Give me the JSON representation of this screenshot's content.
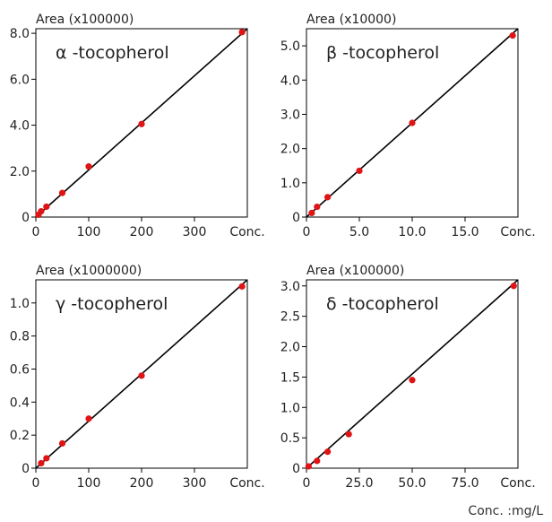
{
  "chart_data": [
    {
      "type": "scatter",
      "title": "α -tocopherol",
      "ylabel": "Area (x100000)",
      "xlabel": "Conc.",
      "xlim": [
        0,
        400
      ],
      "ylim": [
        0,
        8.2
      ],
      "xticks": [
        "0",
        "100",
        "200",
        "300"
      ],
      "yticks": [
        "0",
        "2.0",
        "4.0",
        "6.0",
        "8.0"
      ],
      "fit_line": {
        "x": [
          0,
          400
        ],
        "y": [
          0,
          8.2
        ]
      },
      "series": [
        {
          "x": [
            5,
            10,
            20,
            50,
            100,
            200,
            390
          ],
          "y": [
            0.1,
            0.25,
            0.45,
            1.05,
            2.2,
            4.05,
            8.05
          ]
        }
      ]
    },
    {
      "type": "scatter",
      "title": "β -tocopherol",
      "ylabel": "Area (x10000)",
      "xlabel": "Conc.",
      "xlim": [
        0,
        20
      ],
      "ylim": [
        0,
        5.5
      ],
      "xticks": [
        "0",
        "5.0",
        "10.0",
        "15.0"
      ],
      "yticks": [
        "0",
        "1.0",
        "2.0",
        "3.0",
        "4.0",
        "5.0"
      ],
      "fit_line": {
        "x": [
          0,
          20
        ],
        "y": [
          0,
          5.5
        ]
      },
      "series": [
        {
          "x": [
            0.5,
            1,
            2,
            5,
            10,
            19.5
          ],
          "y": [
            0.12,
            0.3,
            0.58,
            1.35,
            2.75,
            5.3
          ]
        }
      ]
    },
    {
      "type": "scatter",
      "title": "γ -tocopherol",
      "ylabel": "Area (x1000000)",
      "xlabel": "Conc.",
      "xlim": [
        0,
        400
      ],
      "ylim": [
        0,
        1.14
      ],
      "xticks": [
        "0",
        "100",
        "200",
        "300"
      ],
      "yticks": [
        "0",
        "0.2",
        "0.4",
        "0.6",
        "0.8",
        "1.0"
      ],
      "fit_line": {
        "x": [
          0,
          400
        ],
        "y": [
          0,
          1.14
        ]
      },
      "series": [
        {
          "x": [
            10,
            20,
            50,
            100,
            200,
            390
          ],
          "y": [
            0.03,
            0.06,
            0.15,
            0.3,
            0.56,
            1.1
          ]
        }
      ]
    },
    {
      "type": "scatter",
      "title": "δ -tocopherol",
      "ylabel": "Area (x100000)",
      "xlabel": "Conc.",
      "xlim": [
        0,
        100
      ],
      "ylim": [
        0,
        3.1
      ],
      "xticks": [
        "0",
        "25.0",
        "50.0",
        "75.0"
      ],
      "yticks": [
        "0",
        "0.5",
        "1.0",
        "1.5",
        "2.0",
        "2.5",
        "3.0"
      ],
      "fit_line": {
        "x": [
          0,
          100
        ],
        "y": [
          0,
          3.1
        ]
      },
      "series": [
        {
          "x": [
            1,
            5,
            10,
            20,
            50,
            98
          ],
          "y": [
            0.03,
            0.12,
            0.27,
            0.56,
            1.45,
            3.0
          ]
        }
      ]
    }
  ],
  "footer": {
    "units": "Conc. :mg/L"
  },
  "colors": {
    "point": "#e01414",
    "line": "#000000",
    "axis": "#000000"
  }
}
